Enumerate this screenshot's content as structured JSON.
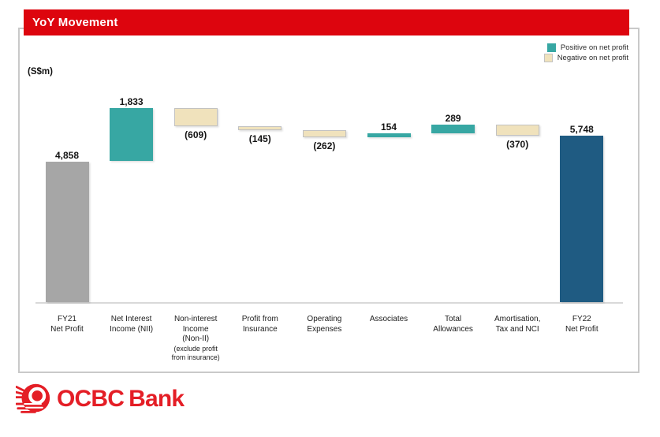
{
  "header": {
    "title": "YoY Movement"
  },
  "units_label": "(S$m)",
  "legend": [
    {
      "name": "positive",
      "label": "Positive on net profit",
      "color": "#37a7a3"
    },
    {
      "name": "negative",
      "label": "Negative on net profit",
      "color": "#f0e2bc"
    }
  ],
  "colors": {
    "positive": "#37a7a3",
    "negative": "#f0e2bc",
    "total_start": "#a6a6a6",
    "total_end": "#1f5b82",
    "header_red": "#dd050e",
    "logo_red": "#e41e26",
    "negative_border": "#c2c2c2"
  },
  "chart_data": {
    "type": "bar",
    "subtype": "waterfall",
    "title": "YoY Movement",
    "unit": "S$m",
    "ylim": [
      0,
      6900
    ],
    "grid": false,
    "legend_position": "top-right",
    "bars": [
      {
        "name": "fy21-net-profit",
        "label": "4,858",
        "value": 4858,
        "start": 0,
        "end": 4858,
        "kind": "total_start",
        "label_pos": "above"
      },
      {
        "name": "net-interest-income",
        "label": "1,833",
        "value": 1833,
        "start": 4858,
        "end": 6691,
        "kind": "positive",
        "label_pos": "above"
      },
      {
        "name": "non-interest-income",
        "label": "(609)",
        "value": -609,
        "start": 6691,
        "end": 6082,
        "kind": "negative",
        "label_pos": "below"
      },
      {
        "name": "profit-from-insurance",
        "label": "(145)",
        "value": -145,
        "start": 6082,
        "end": 5937,
        "kind": "negative",
        "label_pos": "below"
      },
      {
        "name": "operating-expenses",
        "label": "(262)",
        "value": -262,
        "start": 5937,
        "end": 5675,
        "kind": "negative",
        "label_pos": "below"
      },
      {
        "name": "associates",
        "label": "154",
        "value": 154,
        "start": 5675,
        "end": 5829,
        "kind": "positive",
        "label_pos": "above"
      },
      {
        "name": "total-allowances",
        "label": "289",
        "value": 289,
        "start": 5829,
        "end": 6118,
        "kind": "positive",
        "label_pos": "above"
      },
      {
        "name": "amortisation-tax-nci",
        "label": "(370)",
        "value": -370,
        "start": 6118,
        "end": 5748,
        "kind": "negative",
        "label_pos": "below"
      },
      {
        "name": "fy22-net-profit",
        "label": "5,748",
        "value": 5748,
        "start": 0,
        "end": 5748,
        "kind": "total_end",
        "label_pos": "above"
      }
    ],
    "categories": [
      {
        "lines": [
          "FY21",
          "Net Profit"
        ]
      },
      {
        "lines": [
          "Net Interest",
          "Income (NII)"
        ]
      },
      {
        "lines": [
          "Non-interest",
          "Income",
          "(Non-II)"
        ],
        "note_lines": [
          "(exclude profit",
          "from insurance)"
        ]
      },
      {
        "lines": [
          "Profit from",
          "Insurance"
        ]
      },
      {
        "lines": [
          "Operating",
          "Expenses"
        ]
      },
      {
        "lines": [
          "Associates"
        ]
      },
      {
        "lines": [
          "Total",
          "Allowances"
        ]
      },
      {
        "lines": [
          "Amortisation,",
          "Tax and NCI"
        ]
      },
      {
        "lines": [
          "FY22",
          "Net Profit"
        ]
      }
    ]
  },
  "logo": {
    "word1": "OCBC",
    "word2": "Bank"
  }
}
